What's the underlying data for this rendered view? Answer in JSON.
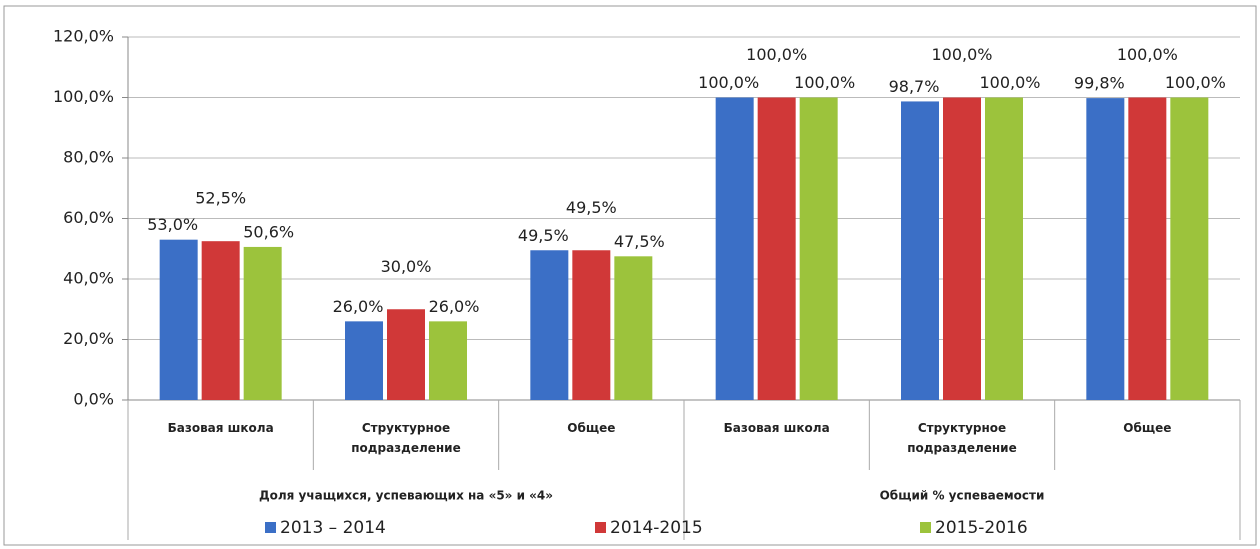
{
  "chart_data": {
    "type": "bar",
    "groups": [
      {
        "name": "Доля учащихся, успевающих на «5» и «4»",
        "categories": [
          "Базовая школа",
          "Структурное подразделение",
          "Общее"
        ]
      },
      {
        "name": "Общий % успеваемости",
        "categories": [
          "Базовая школа",
          "Структурное подразделение",
          "Общее"
        ]
      }
    ],
    "series": [
      {
        "name": "2013 – 2014",
        "color": "#3b6fc6",
        "values": [
          53.0,
          26.0,
          49.5,
          100,
          98.7,
          99.8
        ],
        "value_labels": [
          "53,0%",
          "26,0%",
          "49,5%",
          "100,0%",
          "98,7%",
          "99,8%"
        ]
      },
      {
        "name": "2014-2015",
        "color": "#d03838",
        "values": [
          52.5,
          30.0,
          49.5,
          100,
          100,
          100
        ],
        "value_labels": [
          "52,5%",
          "30,0%",
          "49,5%",
          "100,0%",
          "100,0%",
          "100,0%"
        ]
      },
      {
        "name": "2015-2016",
        "color": "#9cc33c",
        "values": [
          50.6,
          26.0,
          47.5,
          100,
          100,
          100
        ],
        "value_labels": [
          "50,6%",
          "26,0%",
          "47,5%",
          "100,0%",
          "100,0%",
          "100,0%"
        ]
      }
    ],
    "ylim": [
      0,
      120
    ],
    "yticks": [
      {
        "value": 0,
        "label": "0,0%"
      },
      {
        "value": 20,
        "label": "20,0%"
      },
      {
        "value": 40,
        "label": "40,0%"
      },
      {
        "value": 60,
        "label": "60,0%"
      },
      {
        "value": 80,
        "label": "80,0%"
      },
      {
        "value": 100,
        "label": "100,0%"
      },
      {
        "value": 120,
        "label": "120,0%"
      }
    ],
    "grid": true,
    "legend": "bottom"
  }
}
